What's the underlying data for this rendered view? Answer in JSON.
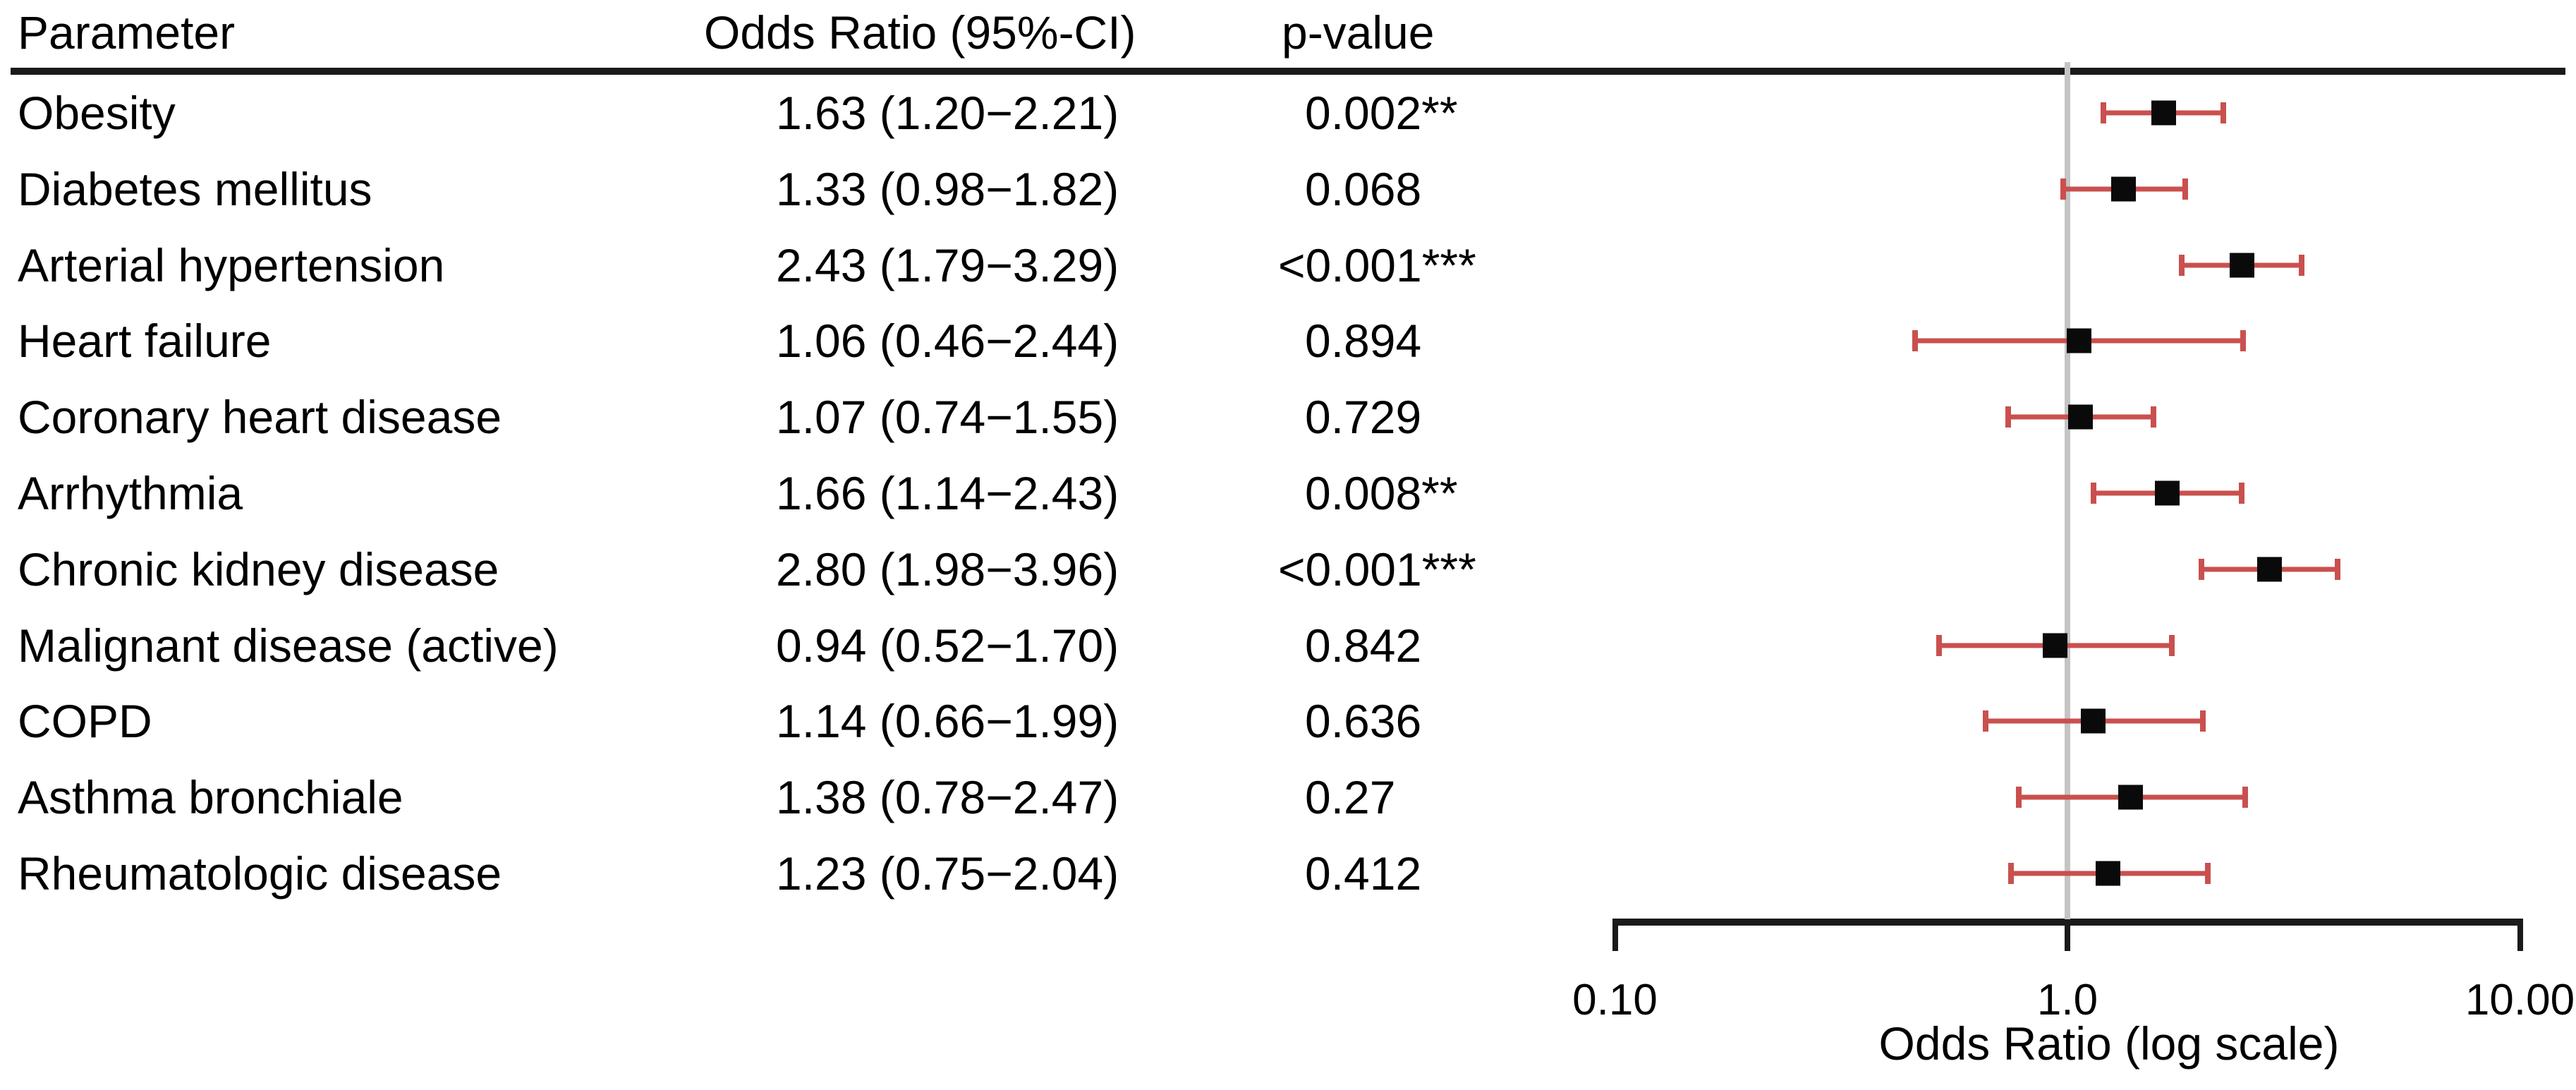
{
  "header": {
    "parameter": "Parameter",
    "odds_ratio": "Odds Ratio (95%-CI)",
    "p_value": "p-value"
  },
  "chart_data": {
    "type": "forest",
    "title": "",
    "xlabel": "Odds Ratio (log scale)",
    "x_scale": "log",
    "xlim": [
      0.1,
      10.0
    ],
    "reference_line": 1.0,
    "grid": false,
    "x_ticks": [
      {
        "value": 0.1,
        "label": "0.10"
      },
      {
        "value": 1.0,
        "label": "1.0"
      },
      {
        "value": 10.0,
        "label": "10.00"
      }
    ],
    "rows": [
      {
        "parameter": "Obesity",
        "or": 1.63,
        "ci_low": 1.2,
        "ci_high": 2.21,
        "or_ci_label": "1.63 (1.20−2.21)",
        "p_label": "0.002**"
      },
      {
        "parameter": "Diabetes mellitus",
        "or": 1.33,
        "ci_low": 0.98,
        "ci_high": 1.82,
        "or_ci_label": "1.33 (0.98−1.82)",
        "p_label": "0.068"
      },
      {
        "parameter": "Arterial hypertension",
        "or": 2.43,
        "ci_low": 1.79,
        "ci_high": 3.29,
        "or_ci_label": "2.43 (1.79−3.29)",
        "p_label": "<0.001***"
      },
      {
        "parameter": "Heart failure",
        "or": 1.06,
        "ci_low": 0.46,
        "ci_high": 2.44,
        "or_ci_label": "1.06 (0.46−2.44)",
        "p_label": "0.894"
      },
      {
        "parameter": "Coronary heart disease",
        "or": 1.07,
        "ci_low": 0.74,
        "ci_high": 1.55,
        "or_ci_label": "1.07 (0.74−1.55)",
        "p_label": "0.729"
      },
      {
        "parameter": "Arrhythmia",
        "or": 1.66,
        "ci_low": 1.14,
        "ci_high": 2.43,
        "or_ci_label": "1.66 (1.14−2.43)",
        "p_label": "0.008**"
      },
      {
        "parameter": "Chronic kidney disease",
        "or": 2.8,
        "ci_low": 1.98,
        "ci_high": 3.96,
        "or_ci_label": "2.80 (1.98−3.96)",
        "p_label": "<0.001***"
      },
      {
        "parameter": "Malignant disease (active)",
        "or": 0.94,
        "ci_low": 0.52,
        "ci_high": 1.7,
        "or_ci_label": "0.94 (0.52−1.70)",
        "p_label": "0.842"
      },
      {
        "parameter": "COPD",
        "or": 1.14,
        "ci_low": 0.66,
        "ci_high": 1.99,
        "or_ci_label": "1.14 (0.66−1.99)",
        "p_label": "0.636"
      },
      {
        "parameter": "Asthma bronchiale",
        "or": 1.38,
        "ci_low": 0.78,
        "ci_high": 2.47,
        "or_ci_label": "1.38 (0.78−2.47)",
        "p_label": "0.27"
      },
      {
        "parameter": "Rheumatologic disease",
        "or": 1.23,
        "ci_low": 0.75,
        "ci_high": 2.04,
        "or_ci_label": "1.23 (0.75−2.04)",
        "p_label": "0.412"
      }
    ]
  },
  "colors": {
    "error_bar": "#c9504e",
    "marker": "#0a0a0a",
    "reference_line": "#c4c4c4",
    "rule": "#1a1a1a",
    "text": "#000000",
    "background": "#ffffff"
  }
}
